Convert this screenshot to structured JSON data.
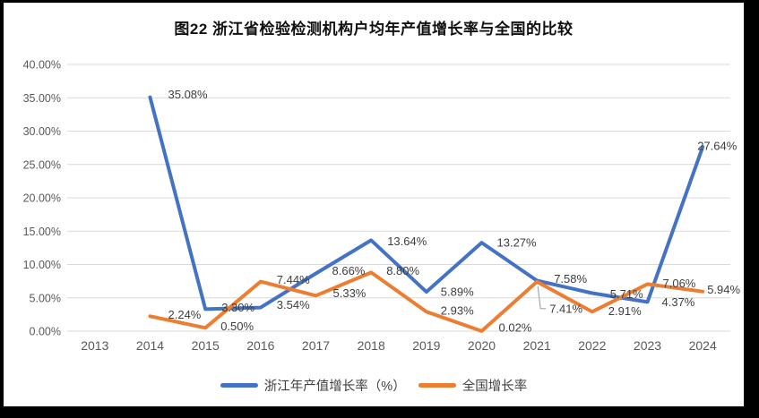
{
  "page": {
    "background_color": "#000000",
    "card_color": "#FFFFFF"
  },
  "chart_data": {
    "type": "line",
    "title": "图22 浙江省检验检测机构户均年产值增长率与全国的比较",
    "categories": [
      "2013",
      "2014",
      "2015",
      "2016",
      "2017",
      "2018",
      "2019",
      "2020",
      "2021",
      "2022",
      "2023",
      "2024"
    ],
    "series": [
      {
        "name": "浙江年产值增长率（%）",
        "color": "#4472C4",
        "values": [
          null,
          35.08,
          3.3,
          3.54,
          8.66,
          13.64,
          5.89,
          13.27,
          7.58,
          5.71,
          4.37,
          27.64
        ],
        "labels": [
          "",
          "35.08%",
          "3.30%",
          "3.54%",
          "8.66%",
          "13.64%",
          "5.89%",
          "13.27%",
          "7.58%",
          "5.71%",
          "4.37%",
          "27.64%"
        ]
      },
      {
        "name": "全国增长率",
        "color": "#ED7D31",
        "values": [
          null,
          2.24,
          0.5,
          7.44,
          5.33,
          8.8,
          2.93,
          0.02,
          7.41,
          2.91,
          7.06,
          5.94
        ],
        "labels": [
          "",
          "2.24%",
          "0.50%",
          "7.44%",
          "5.33%",
          "8.80%",
          "2.93%",
          "0.02%",
          "7.41%",
          "2.91%",
          "7.06%",
          "5.94%"
        ]
      }
    ],
    "y_axis": {
      "min": 0,
      "max": 40,
      "step": 5,
      "tick_labels": [
        "0.00%",
        "5.00%",
        "10.00%",
        "15.00%",
        "20.00%",
        "25.00%",
        "30.00%",
        "35.00%",
        "40.00%"
      ]
    },
    "grid": true,
    "legend_position": "bottom",
    "gridline_color": "#D9D9D9",
    "axis_text_color": "#595959",
    "label_text_color": "#3d3d3d",
    "leader_line_color": "#A6A6A6"
  }
}
